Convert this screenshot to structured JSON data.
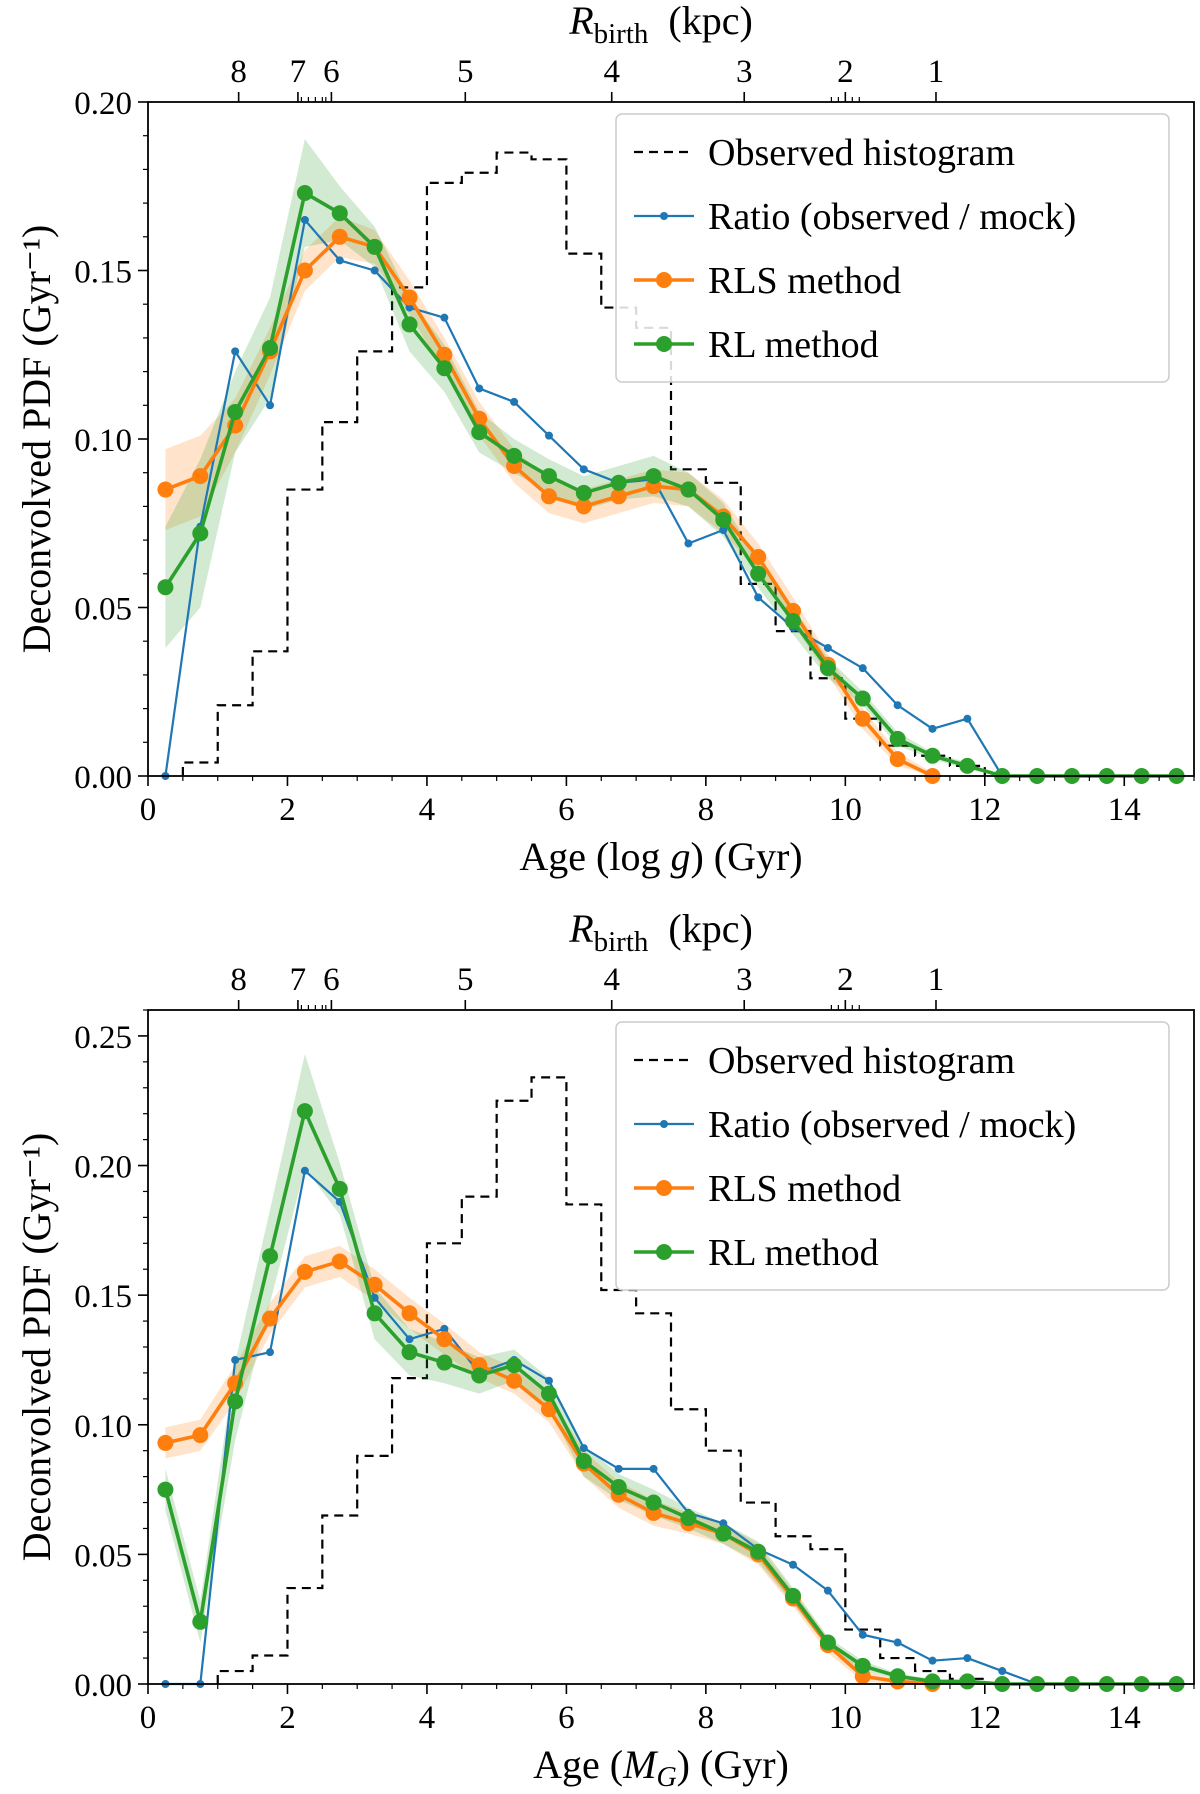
{
  "colors": {
    "observed": "#000000",
    "ratio": "#1f77b4",
    "rls": "#ff7f0e",
    "rl": "#2ca02c",
    "legend_border": "#cccccc"
  },
  "legend": {
    "observed": "Observed histogram",
    "ratio": "Ratio (observed / mock)",
    "rls": "RLS method",
    "rl": "RL method"
  },
  "chart_data": [
    {
      "type": "line",
      "panel": "top",
      "xlabel": "Age  (log g)  (Gyr)",
      "xlabel_parts": {
        "pre": "Age  (log ",
        "italic": "g",
        "post": ")  (Gyr)"
      },
      "ylabel": "Deconvolved PDF  (Gyr⁻¹)",
      "top_axis_label": "R_birth  (kpc)",
      "top_axis_parts": {
        "base": "R",
        "sub": "birth",
        "unit": "(kpc)"
      },
      "xlim": [
        0,
        15
      ],
      "ylim": [
        0,
        0.2
      ],
      "xticks": [
        "0",
        "2",
        "4",
        "6",
        "8",
        "10",
        "12",
        "14"
      ],
      "yticks": [
        "0.00",
        "0.05",
        "0.10",
        "0.15",
        "0.20"
      ],
      "top_ticks": [
        {
          "label": "8",
          "age": 1.3
        },
        {
          "label": "7",
          "age": 2.15
        },
        {
          "label": "6",
          "age": 2.63
        },
        {
          "label": "5",
          "age": 4.55
        },
        {
          "label": "4",
          "age": 6.65
        },
        {
          "label": "3",
          "age": 8.55
        },
        {
          "label": "2",
          "age": 10.0
        },
        {
          "label": "1",
          "age": 11.3
        }
      ],
      "top_minor_ticks": [
        2.2,
        2.3,
        2.4,
        2.5,
        2.55,
        9.8,
        9.9,
        10.1,
        10.2
      ],
      "observed_histogram": {
        "edges": [
          0.5,
          1.0,
          1.5,
          2.0,
          2.5,
          3.0,
          3.5,
          4.0,
          4.5,
          5.0,
          5.5,
          6.0,
          6.5,
          7.0,
          7.5,
          8.0,
          8.5,
          9.0,
          9.5,
          10.0,
          10.5,
          11.0,
          11.5,
          12.0
        ],
        "values": [
          0.004,
          0.021,
          0.037,
          0.085,
          0.105,
          0.126,
          0.145,
          0.176,
          0.179,
          0.185,
          0.183,
          0.155,
          0.139,
          0.133,
          0.091,
          0.087,
          0.057,
          0.043,
          0.029,
          0.017,
          0.009,
          0.006,
          0.003
        ]
      },
      "ratio": {
        "x": [
          0.25,
          0.75,
          1.25,
          1.75,
          2.25,
          2.75,
          3.25,
          3.75,
          4.25,
          4.75,
          5.25,
          5.75,
          6.25,
          6.75,
          7.25,
          7.75,
          8.25,
          8.75,
          9.25,
          9.75,
          10.25,
          10.75,
          11.25,
          11.75,
          12.25
        ],
        "y": [
          0.0,
          0.074,
          0.126,
          0.11,
          0.165,
          0.153,
          0.15,
          0.139,
          0.136,
          0.115,
          0.111,
          0.101,
          0.091,
          0.087,
          0.088,
          0.069,
          0.073,
          0.053,
          0.044,
          0.038,
          0.032,
          0.021,
          0.014,
          0.017,
          0.0
        ]
      },
      "rls": {
        "x": [
          0.25,
          0.75,
          1.25,
          1.75,
          2.25,
          2.75,
          3.25,
          3.75,
          4.25,
          4.75,
          5.25,
          5.75,
          6.25,
          6.75,
          7.25,
          7.75,
          8.25,
          8.75,
          9.25,
          9.75,
          10.25,
          10.75,
          11.25
        ],
        "y": [
          0.085,
          0.089,
          0.104,
          0.126,
          0.15,
          0.16,
          0.157,
          0.142,
          0.125,
          0.106,
          0.092,
          0.083,
          0.08,
          0.083,
          0.086,
          0.085,
          0.077,
          0.065,
          0.049,
          0.033,
          0.017,
          0.005,
          0.0
        ],
        "err": [
          0.012,
          0.012,
          0.008,
          0.007,
          0.006,
          0.006,
          0.005,
          0.005,
          0.005,
          0.005,
          0.005,
          0.005,
          0.005,
          0.005,
          0.005,
          0.005,
          0.005,
          0.004,
          0.004,
          0.003,
          0.003,
          0.002,
          0.001
        ]
      },
      "rl": {
        "x": [
          0.25,
          0.75,
          1.25,
          1.75,
          2.25,
          2.75,
          3.25,
          3.75,
          4.25,
          4.75,
          5.25,
          5.75,
          6.25,
          6.75,
          7.25,
          7.75,
          8.25,
          8.75,
          9.25,
          9.75,
          10.25,
          10.75,
          11.25,
          11.75,
          12.25,
          12.75,
          13.25,
          13.75,
          14.25,
          14.75
        ],
        "y": [
          0.056,
          0.072,
          0.108,
          0.127,
          0.173,
          0.167,
          0.157,
          0.134,
          0.121,
          0.102,
          0.095,
          0.089,
          0.084,
          0.087,
          0.089,
          0.085,
          0.076,
          0.06,
          0.046,
          0.032,
          0.023,
          0.011,
          0.006,
          0.003,
          0.0,
          0.0,
          0.0,
          0.0,
          0.0,
          0.0
        ],
        "err": [
          0.018,
          0.022,
          0.012,
          0.015,
          0.016,
          0.008,
          0.006,
          0.008,
          0.007,
          0.006,
          0.005,
          0.005,
          0.005,
          0.005,
          0.006,
          0.005,
          0.005,
          0.004,
          0.004,
          0.003,
          0.002,
          0.002,
          0.001,
          0.001,
          0.0,
          0.0,
          0.0,
          0.0,
          0.0,
          0.0
        ]
      }
    },
    {
      "type": "line",
      "panel": "bottom",
      "xlabel": "Age  (M_G)  (Gyr)",
      "xlabel_parts": {
        "pre": "Age  (",
        "italic": "M",
        "sub": "G",
        "post": ")  (Gyr)"
      },
      "ylabel": "Deconvolved PDF  (Gyr⁻¹)",
      "top_axis_label": "R_birth  (kpc)",
      "top_axis_parts": {
        "base": "R",
        "sub": "birth",
        "unit": "(kpc)"
      },
      "xlim": [
        0,
        15
      ],
      "ylim": [
        0,
        0.26
      ],
      "xticks": [
        "0",
        "2",
        "4",
        "6",
        "8",
        "10",
        "12",
        "14"
      ],
      "yticks": [
        "0.00",
        "0.05",
        "0.10",
        "0.15",
        "0.20",
        "0.25"
      ],
      "top_ticks": [
        {
          "label": "8",
          "age": 1.3
        },
        {
          "label": "7",
          "age": 2.15
        },
        {
          "label": "6",
          "age": 2.63
        },
        {
          "label": "5",
          "age": 4.55
        },
        {
          "label": "4",
          "age": 6.65
        },
        {
          "label": "3",
          "age": 8.55
        },
        {
          "label": "2",
          "age": 10.0
        },
        {
          "label": "1",
          "age": 11.3
        }
      ],
      "top_minor_ticks": [
        2.2,
        2.3,
        2.4,
        2.5,
        2.55,
        9.8,
        9.9,
        10.1,
        10.2
      ],
      "observed_histogram": {
        "edges": [
          1.0,
          1.5,
          2.0,
          2.5,
          3.0,
          3.5,
          4.0,
          4.5,
          5.0,
          5.5,
          6.0,
          6.5,
          7.0,
          7.5,
          8.0,
          8.5,
          9.0,
          9.5,
          10.0,
          10.5,
          11.0,
          11.5,
          12.0
        ],
        "values": [
          0.005,
          0.011,
          0.037,
          0.065,
          0.088,
          0.118,
          0.17,
          0.188,
          0.225,
          0.234,
          0.185,
          0.152,
          0.143,
          0.106,
          0.09,
          0.07,
          0.057,
          0.052,
          0.021,
          0.01,
          0.005,
          0.002
        ]
      },
      "ratio": {
        "x": [
          0.25,
          0.75,
          1.25,
          1.75,
          2.25,
          2.75,
          3.25,
          3.75,
          4.25,
          4.75,
          5.25,
          5.75,
          6.25,
          6.75,
          7.25,
          7.75,
          8.25,
          8.75,
          9.25,
          9.75,
          10.25,
          10.75,
          11.25,
          11.75,
          12.25,
          12.75
        ],
        "y": [
          0.0,
          0.0,
          0.125,
          0.128,
          0.198,
          0.186,
          0.149,
          0.133,
          0.137,
          0.12,
          0.125,
          0.117,
          0.091,
          0.083,
          0.083,
          0.066,
          0.062,
          0.052,
          0.046,
          0.036,
          0.019,
          0.016,
          0.009,
          0.01,
          0.005,
          0.0
        ]
      },
      "rls": {
        "x": [
          0.25,
          0.75,
          1.25,
          1.75,
          2.25,
          2.75,
          3.25,
          3.75,
          4.25,
          4.75,
          5.25,
          5.75,
          6.25,
          6.75,
          7.25,
          7.75,
          8.25,
          8.75,
          9.25,
          9.75,
          10.25,
          10.75,
          11.25
        ],
        "y": [
          0.093,
          0.096,
          0.116,
          0.141,
          0.159,
          0.163,
          0.154,
          0.143,
          0.133,
          0.123,
          0.117,
          0.106,
          0.085,
          0.073,
          0.066,
          0.062,
          0.058,
          0.05,
          0.033,
          0.015,
          0.003,
          0.001,
          0.0
        ],
        "err": [
          0.006,
          0.006,
          0.007,
          0.006,
          0.006,
          0.006,
          0.006,
          0.006,
          0.006,
          0.005,
          0.005,
          0.005,
          0.005,
          0.005,
          0.005,
          0.004,
          0.004,
          0.004,
          0.003,
          0.003,
          0.002,
          0.001,
          0.001
        ]
      },
      "rl": {
        "x": [
          0.25,
          0.75,
          1.25,
          1.75,
          2.25,
          2.75,
          3.25,
          3.75,
          4.25,
          4.75,
          5.25,
          5.75,
          6.25,
          6.75,
          7.25,
          7.75,
          8.25,
          8.75,
          9.25,
          9.75,
          10.25,
          10.75,
          11.25,
          11.75,
          12.25,
          12.75,
          13.25,
          13.75,
          14.25,
          14.75
        ],
        "y": [
          0.075,
          0.024,
          0.109,
          0.165,
          0.221,
          0.191,
          0.143,
          0.128,
          0.124,
          0.119,
          0.123,
          0.112,
          0.086,
          0.076,
          0.07,
          0.064,
          0.058,
          0.051,
          0.034,
          0.016,
          0.007,
          0.003,
          0.001,
          0.001,
          0.0,
          0.0,
          0.0,
          0.0,
          0.0,
          0.0
        ],
        "err": [
          0.008,
          0.008,
          0.015,
          0.018,
          0.022,
          0.01,
          0.01,
          0.009,
          0.008,
          0.007,
          0.006,
          0.006,
          0.006,
          0.005,
          0.005,
          0.004,
          0.004,
          0.004,
          0.003,
          0.002,
          0.002,
          0.001,
          0.001,
          0.0,
          0.0,
          0.0,
          0.0,
          0.0,
          0.0,
          0.0
        ]
      }
    }
  ]
}
